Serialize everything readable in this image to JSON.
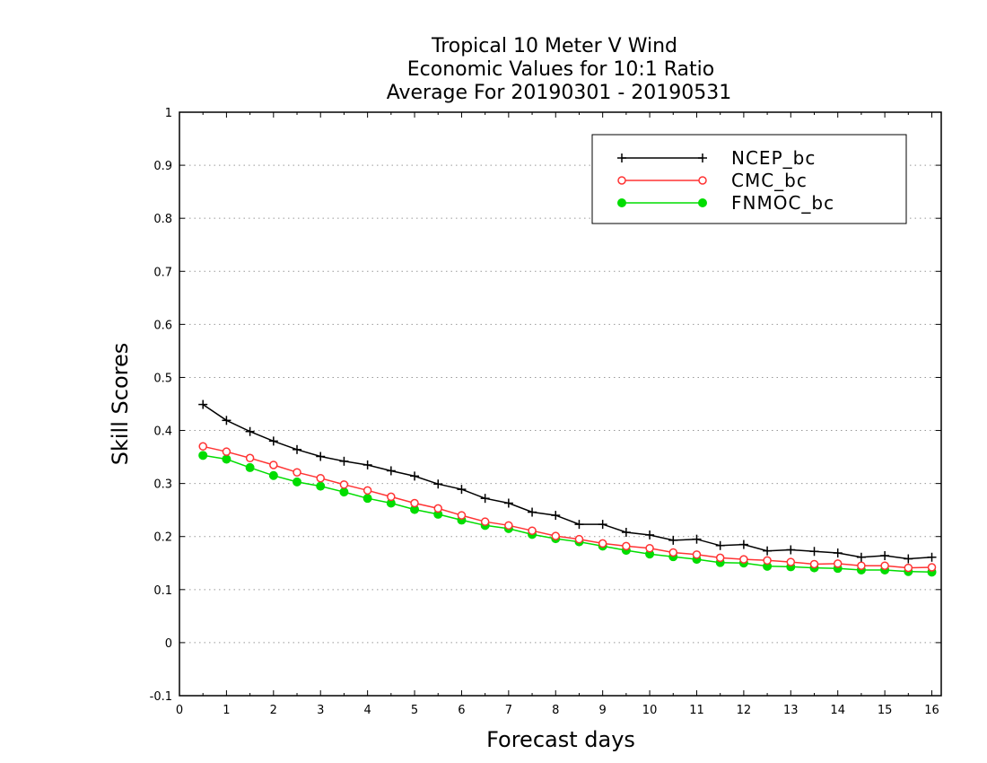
{
  "chart_data": {
    "type": "line",
    "title_lines": [
      "Tropical 10 Meter V Wind",
      "Economic Values for 10:1 Ratio",
      "Average For 20190301 - 20190531"
    ],
    "xlabel": "Forecast days",
    "ylabel": "Skill Scores",
    "xlim": [
      0,
      16.2
    ],
    "ylim": [
      -0.1,
      1
    ],
    "x_ticks": [
      0,
      1,
      2,
      3,
      4,
      5,
      6,
      7,
      8,
      9,
      10,
      11,
      12,
      13,
      14,
      15,
      16
    ],
    "y_ticks": [
      -0.1,
      0,
      0.1,
      0.2,
      0.3,
      0.4,
      0.5,
      0.6,
      0.7,
      0.8,
      0.9,
      1
    ],
    "y_tick_labels": [
      "-0.1",
      "0",
      "0.1",
      "0.2",
      "0.3",
      "0.4",
      "0.5",
      "0.6",
      "0.7",
      "0.8",
      "0.9",
      "1"
    ],
    "grid": "horizontal dotted",
    "legend_position": "top-right",
    "x": [
      0.5,
      1,
      1.5,
      2,
      2.5,
      3,
      3.5,
      4,
      4.5,
      5,
      5.5,
      6,
      6.5,
      7,
      7.5,
      8,
      8.5,
      9,
      9.5,
      10,
      10.5,
      11,
      11.5,
      12,
      12.5,
      13,
      13.5,
      14,
      14.5,
      15,
      15.5,
      16
    ],
    "series": [
      {
        "name": "NCEP_bc",
        "color": "#000000",
        "marker": "plus",
        "values": [
          0.449,
          0.419,
          0.398,
          0.38,
          0.364,
          0.351,
          0.342,
          0.335,
          0.324,
          0.314,
          0.299,
          0.289,
          0.272,
          0.263,
          0.246,
          0.24,
          0.223,
          0.223,
          0.208,
          0.203,
          0.193,
          0.195,
          0.183,
          0.185,
          0.173,
          0.175,
          0.172,
          0.169,
          0.161,
          0.164,
          0.158,
          0.161
        ]
      },
      {
        "name": "CMC_bc",
        "color": "#ff3333",
        "marker": "open-circle",
        "values": [
          0.37,
          0.36,
          0.348,
          0.335,
          0.321,
          0.31,
          0.298,
          0.287,
          0.275,
          0.263,
          0.253,
          0.24,
          0.228,
          0.221,
          0.211,
          0.201,
          0.195,
          0.187,
          0.182,
          0.178,
          0.17,
          0.166,
          0.16,
          0.157,
          0.155,
          0.152,
          0.148,
          0.149,
          0.145,
          0.145,
          0.141,
          0.142
        ]
      },
      {
        "name": "FNMOC_bc",
        "color": "#00dd00",
        "marker": "filled-circle",
        "values": [
          0.353,
          0.346,
          0.33,
          0.315,
          0.303,
          0.295,
          0.284,
          0.272,
          0.263,
          0.251,
          0.242,
          0.231,
          0.221,
          0.215,
          0.204,
          0.196,
          0.19,
          0.182,
          0.174,
          0.167,
          0.162,
          0.157,
          0.151,
          0.15,
          0.144,
          0.143,
          0.141,
          0.14,
          0.137,
          0.137,
          0.134,
          0.133
        ]
      }
    ]
  }
}
